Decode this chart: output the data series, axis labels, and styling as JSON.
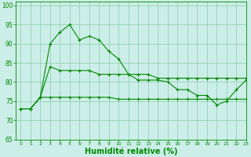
{
  "background_color": "#cceee8",
  "grid_color": "#88ccaa",
  "line_color": "#008800",
  "xlabel": "Humidité relative (%)",
  "xlim": [
    -0.5,
    23
  ],
  "ylim": [
    65,
    101
  ],
  "yticks": [
    65,
    70,
    75,
    80,
    85,
    90,
    95,
    100
  ],
  "xticks": [
    0,
    1,
    2,
    3,
    4,
    5,
    6,
    7,
    8,
    9,
    10,
    11,
    12,
    13,
    14,
    15,
    16,
    17,
    18,
    19,
    20,
    21,
    22,
    23
  ],
  "series1": [
    73,
    73,
    76,
    90,
    93,
    95,
    91,
    92,
    91,
    88,
    86,
    82,
    80.5,
    80.5,
    80.5,
    80,
    78,
    78,
    76.5,
    76.5,
    74,
    75,
    78,
    80.5
  ],
  "series2": [
    73,
    73,
    76,
    84,
    83,
    83,
    83,
    83,
    82,
    82,
    82,
    82,
    82,
    82,
    81,
    81,
    81,
    81,
    81,
    81,
    81,
    81,
    81,
    81
  ],
  "series3": [
    73,
    73,
    76,
    76,
    76,
    76,
    76,
    76,
    76,
    76,
    75.5,
    75.5,
    75.5,
    75.5,
    75.5,
    75.5,
    75.5,
    75.5,
    75.5,
    75.5,
    75.5,
    75.5,
    75.5,
    75.5
  ]
}
